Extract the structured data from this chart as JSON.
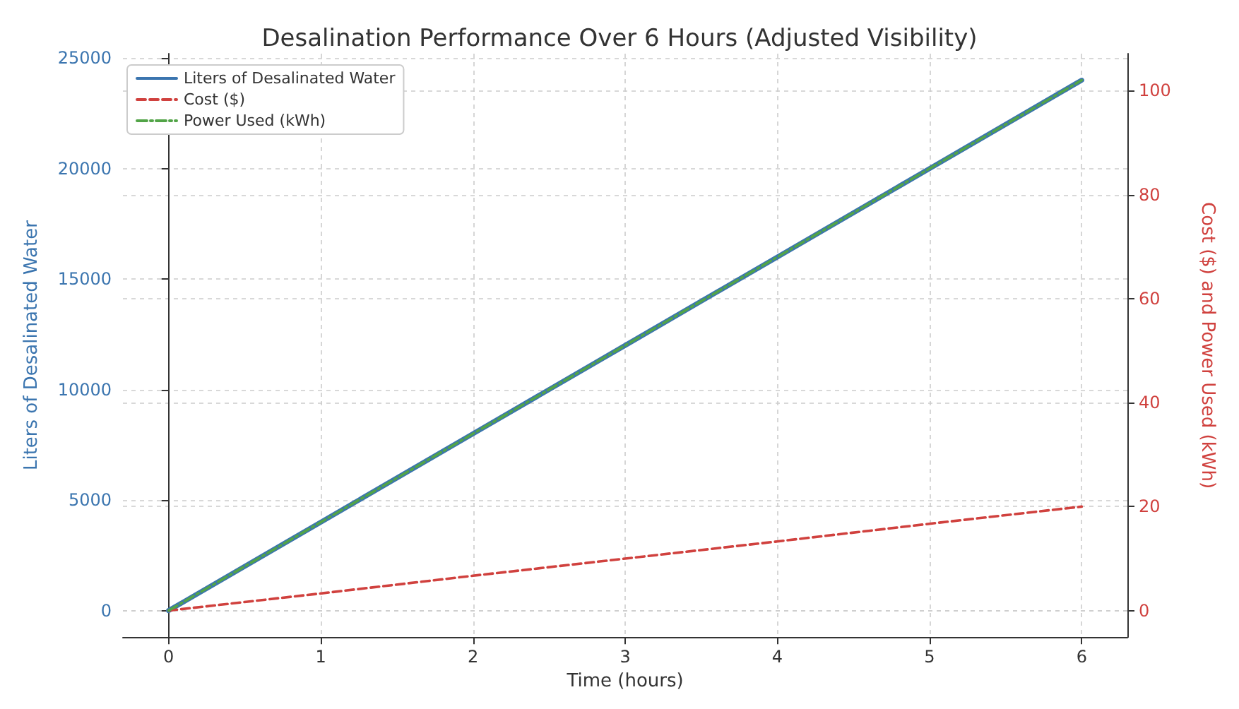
{
  "chart_data": {
    "type": "line",
    "title": "Desalination Performance Over 6 Hours (Adjusted Visibility)",
    "xlabel": "Time (hours)",
    "ylabel": "Liters of Desalinated Water",
    "y2label": "Cost ($) and Power Used (kWh)",
    "x": [
      0,
      1,
      2,
      3,
      4,
      5,
      6
    ],
    "series": [
      {
        "name": "Liters of Desalinated Water",
        "color": "#3b75af",
        "values": [
          0,
          4000,
          8000,
          12000,
          16000,
          20000,
          24000
        ],
        "line_style": "solid"
      },
      {
        "name": "Cost ($)",
        "color": "#d0413e",
        "values": [
          0,
          3.3,
          6.7,
          10,
          13.3,
          16.7,
          20
        ],
        "axis": "y2",
        "line_style": "dashed"
      },
      {
        "name": "Power Used (kWh)",
        "color": "#52a447",
        "values": [
          0,
          17,
          34,
          51,
          68,
          85,
          102
        ],
        "axis": "y2",
        "line_style": "dashdot"
      }
    ],
    "xlim": [
      -0.3,
      6.3
    ],
    "xticks": [
      0,
      1,
      2,
      3,
      4,
      5,
      6
    ],
    "ylim": [
      -1200,
      25200
    ],
    "yticks": [
      0,
      5000,
      10000,
      15000,
      20000,
      25000
    ],
    "y2lim": [
      -5.1,
      107.1
    ],
    "y2ticks": [
      0,
      20,
      40,
      60,
      80,
      100
    ],
    "grid": true,
    "legend": "top left",
    "marker": "none"
  }
}
